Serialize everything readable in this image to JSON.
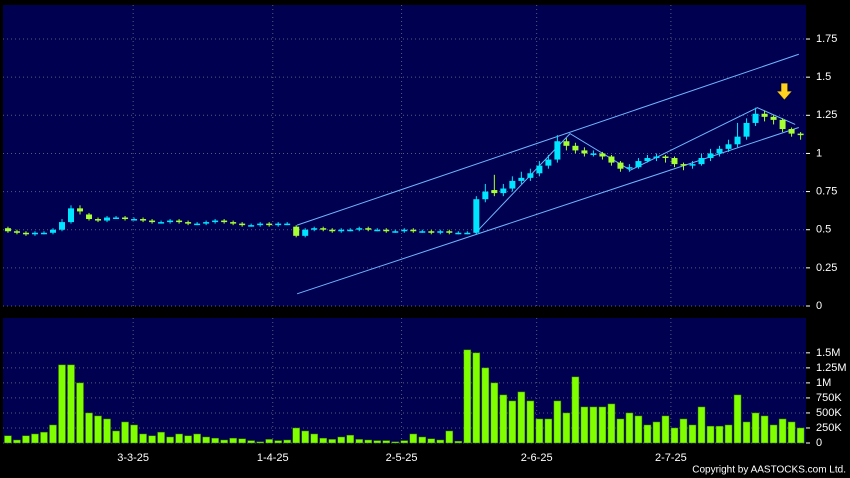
{
  "chart_data": [
    {
      "type": "candlestick",
      "xlim": [
        -0.55,
        88.6
      ],
      "ylim": [
        0,
        1.973
      ],
      "yticks": [
        0,
        0.25,
        0.5,
        0.75,
        1,
        1.25,
        1.5,
        1.75
      ],
      "grid": true,
      "background": "#000050",
      "up_color": "#00e5ff",
      "down_color": "#a6ff33",
      "trendline_color": "#6fb6ff",
      "marker_color": "#ffd21f",
      "open": [
        0.51,
        0.49,
        0.48,
        0.47,
        0.48,
        0.48,
        0.5,
        0.55,
        0.64,
        0.6,
        0.57,
        0.56,
        0.58,
        0.58,
        0.57,
        0.57,
        0.56,
        0.55,
        0.55,
        0.56,
        0.55,
        0.54,
        0.54,
        0.55,
        0.56,
        0.55,
        0.54,
        0.53,
        0.53,
        0.54,
        0.53,
        0.54,
        0.52,
        0.46,
        0.5,
        0.51,
        0.5,
        0.49,
        0.5,
        0.5,
        0.51,
        0.5,
        0.5,
        0.49,
        0.49,
        0.5,
        0.49,
        0.49,
        0.48,
        0.49,
        0.48,
        0.48,
        0.48,
        0.7,
        0.76,
        0.74,
        0.77,
        0.82,
        0.84,
        0.87,
        0.92,
        0.96,
        1.08,
        1.05,
        1.02,
        1.0,
        1.0,
        0.98,
        0.94,
        0.9,
        0.91,
        0.95,
        0.97,
        0.98,
        0.97,
        0.93,
        0.92,
        0.93,
        0.97,
        1.0,
        1.03,
        1.06,
        1.11,
        1.2,
        1.26,
        1.24,
        1.22,
        1.16,
        1.13
      ],
      "high": [
        0.52,
        0.5,
        0.49,
        0.49,
        0.49,
        0.51,
        0.57,
        0.66,
        0.66,
        0.61,
        0.58,
        0.59,
        0.59,
        0.59,
        0.58,
        0.58,
        0.57,
        0.56,
        0.57,
        0.57,
        0.56,
        0.55,
        0.56,
        0.57,
        0.57,
        0.56,
        0.55,
        0.54,
        0.55,
        0.55,
        0.55,
        0.55,
        0.53,
        0.51,
        0.52,
        0.52,
        0.51,
        0.51,
        0.51,
        0.52,
        0.52,
        0.51,
        0.51,
        0.5,
        0.51,
        0.51,
        0.5,
        0.5,
        0.5,
        0.5,
        0.49,
        0.49,
        0.72,
        0.8,
        0.86,
        0.8,
        0.85,
        0.88,
        0.9,
        0.95,
        0.99,
        1.12,
        1.1,
        1.07,
        1.04,
        1.02,
        1.01,
        0.99,
        0.95,
        0.93,
        0.97,
        0.99,
        1.0,
        0.99,
        0.98,
        0.94,
        0.95,
        1.0,
        1.03,
        1.05,
        1.09,
        1.2,
        1.23,
        1.3,
        1.28,
        1.25,
        1.23,
        1.17,
        1.14
      ],
      "low": [
        0.48,
        0.47,
        0.46,
        0.46,
        0.47,
        0.47,
        0.49,
        0.54,
        0.6,
        0.56,
        0.55,
        0.55,
        0.57,
        0.56,
        0.56,
        0.55,
        0.54,
        0.54,
        0.54,
        0.54,
        0.53,
        0.53,
        0.53,
        0.54,
        0.54,
        0.53,
        0.52,
        0.52,
        0.52,
        0.52,
        0.52,
        0.53,
        0.45,
        0.45,
        0.49,
        0.49,
        0.48,
        0.48,
        0.49,
        0.49,
        0.49,
        0.49,
        0.48,
        0.48,
        0.48,
        0.48,
        0.48,
        0.47,
        0.47,
        0.47,
        0.47,
        0.47,
        0.47,
        0.68,
        0.72,
        0.72,
        0.75,
        0.8,
        0.82,
        0.85,
        0.9,
        0.94,
        1.02,
        1.0,
        0.98,
        0.98,
        0.96,
        0.92,
        0.88,
        0.88,
        0.9,
        0.94,
        0.95,
        0.94,
        0.91,
        0.89,
        0.9,
        0.92,
        0.95,
        0.98,
        1.01,
        1.04,
        1.09,
        1.18,
        1.21,
        1.19,
        1.14,
        1.11,
        1.09
      ],
      "close": [
        0.49,
        0.48,
        0.47,
        0.48,
        0.48,
        0.5,
        0.55,
        0.64,
        0.62,
        0.57,
        0.56,
        0.58,
        0.58,
        0.57,
        0.57,
        0.56,
        0.55,
        0.55,
        0.56,
        0.55,
        0.54,
        0.54,
        0.55,
        0.56,
        0.55,
        0.54,
        0.53,
        0.53,
        0.54,
        0.53,
        0.54,
        0.54,
        0.46,
        0.5,
        0.51,
        0.5,
        0.49,
        0.5,
        0.5,
        0.51,
        0.5,
        0.5,
        0.49,
        0.49,
        0.5,
        0.49,
        0.49,
        0.48,
        0.49,
        0.48,
        0.48,
        0.48,
        0.7,
        0.75,
        0.74,
        0.77,
        0.82,
        0.84,
        0.87,
        0.92,
        0.96,
        1.08,
        1.05,
        1.02,
        1.0,
        1.0,
        0.98,
        0.94,
        0.9,
        0.91,
        0.95,
        0.97,
        0.98,
        0.97,
        0.93,
        0.92,
        0.93,
        0.97,
        1.0,
        1.03,
        1.06,
        1.11,
        1.2,
        1.26,
        1.24,
        1.22,
        1.16,
        1.13,
        1.12
      ],
      "trendlines": [
        [
          [
            32.1,
            0.53
          ],
          [
            87.8,
            1.65
          ]
        ],
        [
          [
            32.1,
            0.08
          ],
          [
            87.8,
            1.17
          ]
        ],
        [
          [
            51.9,
            0.478
          ],
          [
            62.4,
            1.13
          ],
          [
            69.1,
            0.89
          ],
          [
            83.2,
            1.3
          ],
          [
            87.4,
            1.19
          ]
        ]
      ]
    },
    {
      "type": "bar",
      "xlim": [
        -0.55,
        88.6
      ],
      "ylim": [
        0,
        2080000
      ],
      "xticks": [
        {
          "value": 13.9,
          "label": "3-3-25"
        },
        {
          "value": 29.4,
          "label": "1-4-25"
        },
        {
          "value": 43.7,
          "label": "2-5-25"
        },
        {
          "value": 58.7,
          "label": "2-6-25"
        },
        {
          "value": 73.6,
          "label": "2-7-25"
        }
      ],
      "yticks": [
        0,
        {
          "value": 250000,
          "label": "250K"
        },
        {
          "value": 500000,
          "label": "500K"
        },
        {
          "value": 750000,
          "label": "750K"
        },
        {
          "value": 1000000,
          "label": "1M"
        },
        {
          "value": 1250000,
          "label": "1.25M"
        },
        {
          "value": 1500000,
          "label": "1.5M"
        }
      ],
      "grid": true,
      "color": "#80ff00",
      "values": [
        120000,
        50000,
        120000,
        150000,
        180000,
        300000,
        1300000,
        1300000,
        1000000,
        500000,
        450000,
        400000,
        200000,
        350000,
        300000,
        150000,
        120000,
        180000,
        100000,
        150000,
        120000,
        150000,
        100000,
        80000,
        50000,
        80000,
        70000,
        40000,
        20000,
        60000,
        40000,
        50000,
        250000,
        200000,
        150000,
        80000,
        60000,
        100000,
        130000,
        60000,
        50000,
        40000,
        40000,
        20000,
        40000,
        150000,
        100000,
        70000,
        50000,
        200000,
        30000,
        1550000,
        1500000,
        1250000,
        1000000,
        800000,
        700000,
        850000,
        700000,
        400000,
        400000,
        700000,
        500000,
        1100000,
        600000,
        600000,
        600000,
        650000,
        400000,
        500000,
        450000,
        300000,
        350000,
        450000,
        250000,
        400000,
        300000,
        600000,
        280000,
        280000,
        300000,
        800000,
        350000,
        500000,
        450000,
        300000,
        400000,
        350000,
        250000
      ],
      "copyright": "Copyright by AASTOCKS.com Ltd."
    }
  ]
}
